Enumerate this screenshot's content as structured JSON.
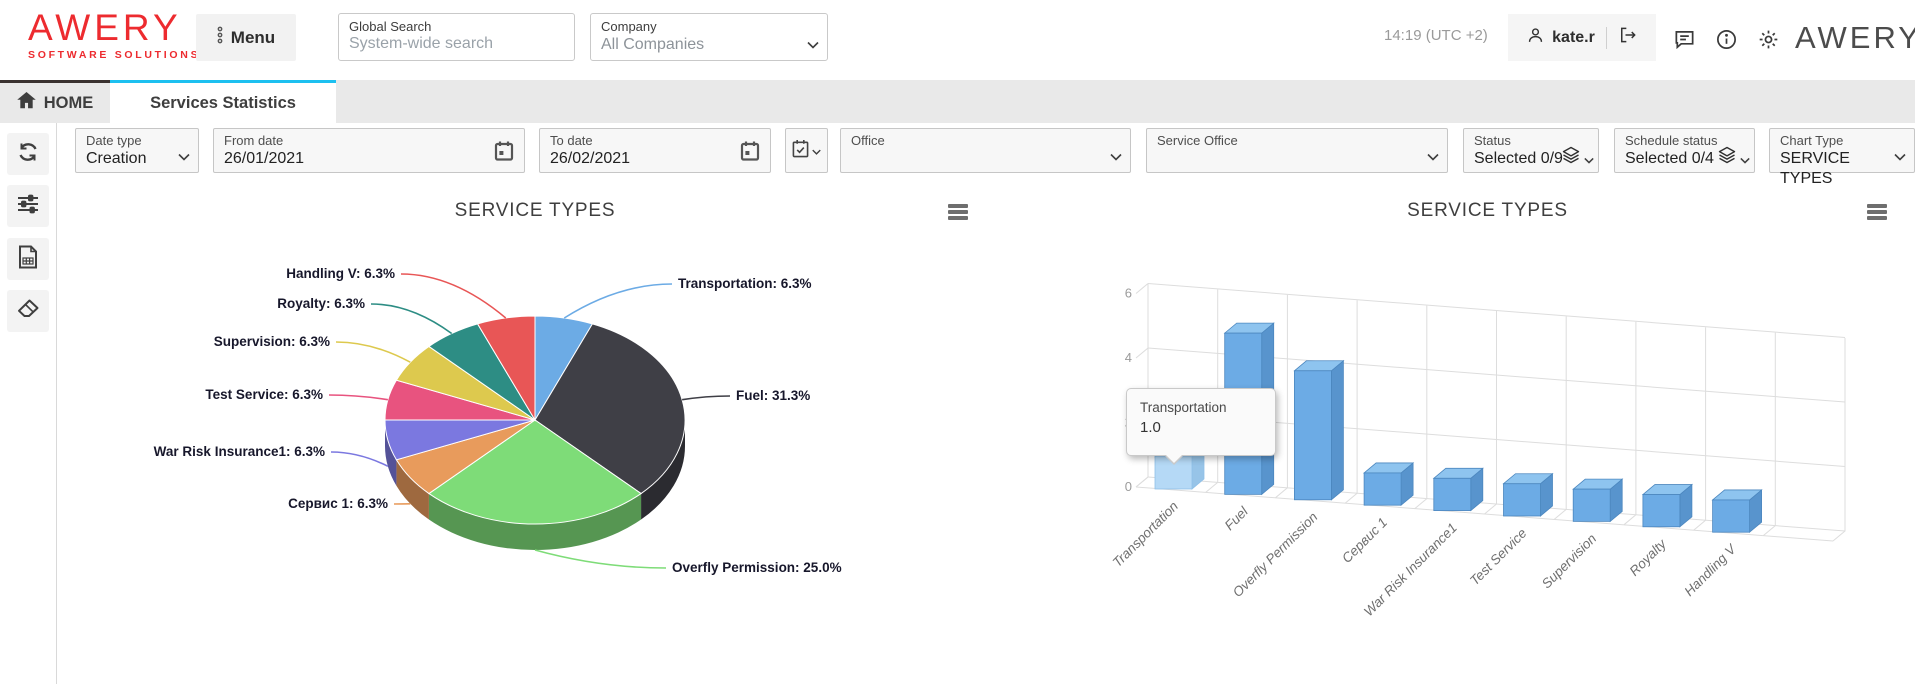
{
  "header": {
    "brand": {
      "name": "AWERY",
      "tagline": "SOFTWARE SOLUTIONS"
    },
    "menu_button": {
      "label": "Menu"
    },
    "global_search": {
      "label": "Global Search",
      "placeholder": "System-wide search",
      "value": ""
    },
    "company": {
      "label": "Company",
      "value": "All Companies"
    },
    "clock": "14:19 (UTC +2)",
    "user": {
      "name": "kate.r"
    },
    "watermark": "AWERY"
  },
  "tabs": {
    "home": {
      "label": "HOME"
    },
    "services": {
      "label": "Services Statistics"
    }
  },
  "sidebar": {
    "icons": [
      "refresh-icon",
      "filter-sliders-icon",
      "report-file-icon",
      "eraser-icon"
    ]
  },
  "filters": {
    "date_type": {
      "label": "Date type",
      "value": "Creation"
    },
    "from_date": {
      "label": "From date",
      "value": "26/01/2021"
    },
    "to_date": {
      "label": "To date",
      "value": "26/02/2021"
    },
    "office": {
      "label": "Office",
      "value": ""
    },
    "service_office": {
      "label": "Service Office",
      "value": ""
    },
    "status": {
      "label": "Status",
      "value": "Selected 0/9"
    },
    "schedule_status": {
      "label": "Schedule status",
      "value": "Selected 0/4"
    },
    "chart_type": {
      "label": "Chart Type",
      "value": "SERVICE TYPES"
    }
  },
  "chart_data": [
    {
      "type": "pie",
      "title": "SERVICE TYPES",
      "slices": [
        {
          "label": "Transportation",
          "value": 1,
          "pct_label": "6.3%",
          "color": "#6cabe5"
        },
        {
          "label": "Fuel",
          "value": 5,
          "pct_label": "31.3%",
          "color": "#3f3f46"
        },
        {
          "label": "Overfly Permission",
          "value": 4,
          "pct_label": "25.0%",
          "color": "#7edc78"
        },
        {
          "label": "Сервис 1",
          "value": 1,
          "pct_label": "6.3%",
          "color": "#e89b5c"
        },
        {
          "label": "War Risk Insurance1",
          "value": 1,
          "pct_label": "6.3%",
          "color": "#7b78e0"
        },
        {
          "label": "Test Service",
          "value": 1,
          "pct_label": "6.3%",
          "color": "#e8537f"
        },
        {
          "label": "Supervision",
          "value": 1,
          "pct_label": "6.3%",
          "color": "#ddc94e"
        },
        {
          "label": "Royalty",
          "value": 1,
          "pct_label": "6.3%",
          "color": "#2d8d84"
        },
        {
          "label": "Handling V",
          "value": 1,
          "pct_label": "6.3%",
          "color": "#e85656"
        }
      ]
    },
    {
      "type": "bar",
      "title": "SERVICE TYPES",
      "categories": [
        "Transportation",
        "Fuel",
        "Overfly Permission",
        "Сервис 1",
        "War Risk Insurance1",
        "Test Service",
        "Supervision",
        "Royalty",
        "Handling V"
      ],
      "values": [
        1,
        5,
        4,
        1,
        1,
        1,
        1,
        1,
        1
      ],
      "ylim": [
        0,
        6
      ],
      "yticks": [
        0,
        2,
        4,
        6
      ],
      "bar_color": "#6cabe5",
      "highlight_index": 0,
      "tooltip": {
        "title": "Transportation",
        "value": "1.0"
      }
    }
  ]
}
